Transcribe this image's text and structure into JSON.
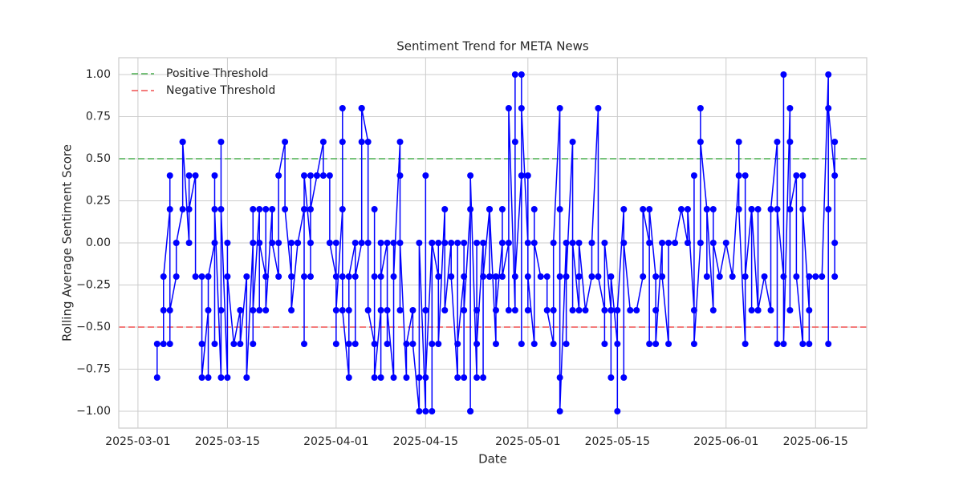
{
  "chart_data": {
    "type": "line",
    "title": "Sentiment Trend for META News",
    "x_label": "Date",
    "y_label": "Rolling Average Sentiment Score",
    "color": "#0000ff",
    "marker": "circle",
    "grid": true,
    "legend": "upper left",
    "xlim": [
      "2025-02-26",
      "2025-06-23"
    ],
    "xticks": [
      "2025-03-01",
      "2025-03-15",
      "2025-04-01",
      "2025-04-15",
      "2025-05-01",
      "2025-05-15",
      "2025-06-01",
      "2025-06-15"
    ],
    "ylim": [
      -1.1,
      1.1
    ],
    "yticks": [
      {
        "value": -1,
        "label": "−1.00"
      },
      {
        "value": -0.75,
        "label": "−0.75"
      },
      {
        "value": -0.5,
        "label": "−0.50"
      },
      {
        "value": -0.25,
        "label": "−0.25"
      },
      {
        "value": 0,
        "label": "0.00"
      },
      {
        "value": 0.25,
        "label": "0.25"
      },
      {
        "value": 0.5,
        "label": "0.50"
      },
      {
        "value": 0.75,
        "label": "0.75"
      },
      {
        "value": 1,
        "label": "1.00"
      }
    ],
    "thresholds": [
      {
        "name": "Positive Threshold",
        "value": 0.5,
        "color": "#4caf50"
      },
      {
        "name": "Negative Threshold",
        "value": -0.5,
        "color": "#f05050"
      }
    ],
    "x": [
      "2025-03-04",
      "2025-03-04",
      "2025-03-05",
      "2025-03-05",
      "2025-03-05",
      "2025-03-06",
      "2025-03-06",
      "2025-03-06",
      "2025-03-06",
      "2025-03-07",
      "2025-03-07",
      "2025-03-08",
      "2025-03-08",
      "2025-03-08",
      "2025-03-09",
      "2025-03-09",
      "2025-03-09",
      "2025-03-10",
      "2025-03-10",
      "2025-03-11",
      "2025-03-11",
      "2025-03-11",
      "2025-03-12",
      "2025-03-12",
      "2025-03-12",
      "2025-03-13",
      "2025-03-13",
      "2025-03-13",
      "2025-03-13",
      "2025-03-14",
      "2025-03-14",
      "2025-03-14",
      "2025-03-14",
      "2025-03-15",
      "2025-03-15",
      "2025-03-15",
      "2025-03-16",
      "2025-03-17",
      "2025-03-17",
      "2025-03-18",
      "2025-03-18",
      "2025-03-19",
      "2025-03-19",
      "2025-03-19",
      "2025-03-19",
      "2025-03-20",
      "2025-03-20",
      "2025-03-20",
      "2025-03-21",
      "2025-03-21",
      "2025-03-21",
      "2025-03-22",
      "2025-03-22",
      "2025-03-23",
      "2025-03-23",
      "2025-03-23",
      "2025-03-24",
      "2025-03-24",
      "2025-03-25",
      "2025-03-25",
      "2025-03-25",
      "2025-03-26",
      "2025-03-26",
      "2025-03-27",
      "2025-03-27",
      "2025-03-27",
      "2025-03-27",
      "2025-03-28",
      "2025-03-28",
      "2025-03-28",
      "2025-03-28",
      "2025-03-29",
      "2025-03-29",
      "2025-03-30",
      "2025-03-30",
      "2025-03-31",
      "2025-03-31",
      "2025-04-01",
      "2025-04-01",
      "2025-04-01",
      "2025-04-01",
      "2025-04-02",
      "2025-04-02",
      "2025-04-02",
      "2025-04-02",
      "2025-04-02",
      "2025-04-03",
      "2025-04-03",
      "2025-04-03",
      "2025-04-03",
      "2025-04-04",
      "2025-04-04",
      "2025-04-04",
      "2025-04-05",
      "2025-04-05",
      "2025-04-05",
      "2025-04-05",
      "2025-04-06",
      "2025-04-06",
      "2025-04-06",
      "2025-04-07",
      "2025-04-07",
      "2025-04-07",
      "2025-04-07",
      "2025-04-08",
      "2025-04-08",
      "2025-04-08",
      "2025-04-08",
      "2025-04-09",
      "2025-04-09",
      "2025-04-09",
      "2025-04-10",
      "2025-04-10",
      "2025-04-10",
      "2025-04-11",
      "2025-04-11",
      "2025-04-11",
      "2025-04-11",
      "2025-04-12",
      "2025-04-12",
      "2025-04-13",
      "2025-04-13",
      "2025-04-14",
      "2025-04-14",
      "2025-04-14",
      "2025-04-15",
      "2025-04-15",
      "2025-04-15",
      "2025-04-15",
      "2025-04-16",
      "2025-04-16",
      "2025-04-16",
      "2025-04-16",
      "2025-04-17",
      "2025-04-17",
      "2025-04-17",
      "2025-04-18",
      "2025-04-18",
      "2025-04-18",
      "2025-04-19",
      "2025-04-19",
      "2025-04-20",
      "2025-04-20",
      "2025-04-20",
      "2025-04-21",
      "2025-04-21",
      "2025-04-21",
      "2025-04-21",
      "2025-04-22",
      "2025-04-22",
      "2025-04-22",
      "2025-04-22",
      "2025-04-23",
      "2025-04-23",
      "2025-04-23",
      "2025-04-23",
      "2025-04-24",
      "2025-04-24",
      "2025-04-24",
      "2025-04-25",
      "2025-04-25",
      "2025-04-25",
      "2025-04-26",
      "2025-04-26",
      "2025-04-26",
      "2025-04-27",
      "2025-04-27",
      "2025-04-27",
      "2025-04-28",
      "2025-04-28",
      "2025-04-28",
      "2025-04-29",
      "2025-04-29",
      "2025-04-29",
      "2025-04-29",
      "2025-04-30",
      "2025-04-30",
      "2025-04-30",
      "2025-04-30",
      "2025-05-01",
      "2025-05-01",
      "2025-05-01",
      "2025-05-01",
      "2025-05-02",
      "2025-05-02",
      "2025-05-02",
      "2025-05-03",
      "2025-05-04",
      "2025-05-04",
      "2025-05-05",
      "2025-05-05",
      "2025-05-05",
      "2025-05-06",
      "2025-05-06",
      "2025-05-06",
      "2025-05-06",
      "2025-05-06",
      "2025-05-07",
      "2025-05-07",
      "2025-05-07",
      "2025-05-08",
      "2025-05-08",
      "2025-05-08",
      "2025-05-09",
      "2025-05-09",
      "2025-05-09",
      "2025-05-10",
      "2025-05-11",
      "2025-05-11",
      "2025-05-12",
      "2025-05-12",
      "2025-05-13",
      "2025-05-13",
      "2025-05-13",
      "2025-05-14",
      "2025-05-14",
      "2025-05-14",
      "2025-05-15",
      "2025-05-15",
      "2025-05-15",
      "2025-05-16",
      "2025-05-16",
      "2025-05-16",
      "2025-05-17",
      "2025-05-18",
      "2025-05-19",
      "2025-05-19",
      "2025-05-20",
      "2025-05-20",
      "2025-05-20",
      "2025-05-21",
      "2025-05-21",
      "2025-05-21",
      "2025-05-22",
      "2025-05-22",
      "2025-05-23",
      "2025-05-23",
      "2025-05-24",
      "2025-05-25",
      "2025-05-26",
      "2025-05-26",
      "2025-05-27",
      "2025-05-27",
      "2025-05-27",
      "2025-05-28",
      "2025-05-28",
      "2025-05-28",
      "2025-05-29",
      "2025-05-29",
      "2025-05-29",
      "2025-05-30",
      "2025-05-30",
      "2025-05-30",
      "2025-05-31",
      "2025-06-01",
      "2025-06-02",
      "2025-06-03",
      "2025-06-03",
      "2025-06-03",
      "2025-06-04",
      "2025-06-04",
      "2025-06-04",
      "2025-06-05",
      "2025-06-05",
      "2025-06-05",
      "2025-06-06",
      "2025-06-06",
      "2025-06-06",
      "2025-06-07",
      "2025-06-08",
      "2025-06-08",
      "2025-06-09",
      "2025-06-09",
      "2025-06-09",
      "2025-06-10",
      "2025-06-10",
      "2025-06-10",
      "2025-06-11",
      "2025-06-11",
      "2025-06-11",
      "2025-06-11",
      "2025-06-12",
      "2025-06-12",
      "2025-06-13",
      "2025-06-13",
      "2025-06-13",
      "2025-06-14",
      "2025-06-14",
      "2025-06-14",
      "2025-06-15",
      "2025-06-16",
      "2025-06-17",
      "2025-06-17",
      "2025-06-17",
      "2025-06-17",
      "2025-06-18",
      "2025-06-18",
      "2025-06-18",
      "2025-06-18"
    ],
    "values": [
      -0.8,
      -0.6,
      -0.6,
      -0.4,
      -0.2,
      0.2,
      0.4,
      -0.6,
      -0.4,
      -0.2,
      0,
      0.2,
      0.6,
      0.6,
      0,
      0.4,
      0.2,
      0.4,
      -0.2,
      -0.2,
      -0.6,
      -0.8,
      -0.4,
      -0.8,
      -0.2,
      0,
      0.4,
      -0.6,
      0.2,
      -0.8,
      0.6,
      -0.4,
      0.2,
      -0.8,
      0,
      -0.2,
      -0.6,
      -0.4,
      -0.6,
      -0.2,
      -0.8,
      0,
      -0.6,
      0.2,
      -0.4,
      0.2,
      -0.4,
      0,
      -0.2,
      0.2,
      -0.4,
      0.2,
      0,
      -0.2,
      0,
      0.4,
      0.6,
      0.2,
      -0.2,
      0,
      -0.4,
      0,
      0,
      0.2,
      -0.2,
      -0.6,
      0.4,
      0,
      0.4,
      -0.2,
      0.2,
      0.4,
      0.4,
      0.6,
      0.4,
      0.4,
      0,
      -0.2,
      -0.6,
      0,
      -0.4,
      0.2,
      -0.2,
      0.6,
      0.8,
      -0.4,
      -0.8,
      -0.4,
      -0.6,
      -0.2,
      0,
      -0.6,
      -0.2,
      0,
      0.6,
      0.8,
      0.8,
      0.6,
      0,
      -0.4,
      -0.6,
      -0.2,
      0.2,
      -0.8,
      -0.4,
      0,
      -0.8,
      -0.2,
      0,
      -0.6,
      -0.4,
      -0.8,
      0,
      -0.2,
      0.6,
      0.4,
      -0.4,
      0,
      -0.8,
      -0.6,
      -0.4,
      -0.6,
      -1,
      -0.8,
      0,
      -1,
      -0.4,
      0.4,
      -0.8,
      0,
      -1,
      -0.6,
      0,
      -0.2,
      0,
      -0.6,
      0.2,
      0,
      -0.4,
      0,
      -0.2,
      -0.8,
      0,
      -0.6,
      -0.2,
      -0.8,
      0,
      -0.4,
      0.2,
      -1,
      -1,
      0.4,
      -0.8,
      0,
      -0.4,
      -0.6,
      0,
      -0.8,
      -0.2,
      0.2,
      -0.2,
      0.2,
      -0.6,
      -0.2,
      -0.4,
      0,
      0.2,
      -0.2,
      0,
      -0.4,
      0.8,
      -0.4,
      0.6,
      1,
      -0.2,
      0.4,
      1,
      -0.6,
      0.8,
      0,
      -0.4,
      0.4,
      -0.2,
      -0.6,
      0.2,
      0,
      -0.2,
      -0.2,
      -0.4,
      -0.6,
      -0.4,
      0,
      0.8,
      -0.8,
      0.2,
      -0.2,
      -1,
      0,
      -0.6,
      -0.2,
      0.6,
      -0.4,
      0,
      -0.4,
      -0.2,
      0,
      -0.4,
      -0.2,
      0,
      0.8,
      -0.2,
      -0.4,
      -0.6,
      0,
      -0.4,
      -0.8,
      -0.2,
      -0.6,
      -1,
      -0.4,
      0.2,
      -0.8,
      0,
      -0.4,
      -0.4,
      -0.2,
      0.2,
      0,
      -0.6,
      0.2,
      -0.2,
      -0.4,
      -0.6,
      0,
      -0.2,
      -0.6,
      0,
      0,
      0.2,
      0,
      0.2,
      -0.4,
      0.4,
      -0.6,
      0,
      0.8,
      0.6,
      0.2,
      -0.2,
      0.2,
      -0.4,
      0.2,
      0,
      -0.2,
      0,
      -0.2,
      0.4,
      0.6,
      0.2,
      -0.6,
      0.4,
      -0.2,
      0.2,
      -0.4,
      0.2,
      -0.4,
      0.2,
      -0.4,
      -0.2,
      -0.4,
      0.2,
      0.6,
      -0.6,
      0.2,
      -0.2,
      1,
      -0.6,
      0.8,
      0.6,
      -0.4,
      0.2,
      0.4,
      -0.2,
      -0.6,
      0.4,
      0.2,
      -0.4,
      -0.6,
      -0.2,
      -0.2,
      -0.2,
      1,
      0.2,
      -0.6,
      0.8,
      0.4,
      -0.2,
      0.6,
      0
    ]
  }
}
